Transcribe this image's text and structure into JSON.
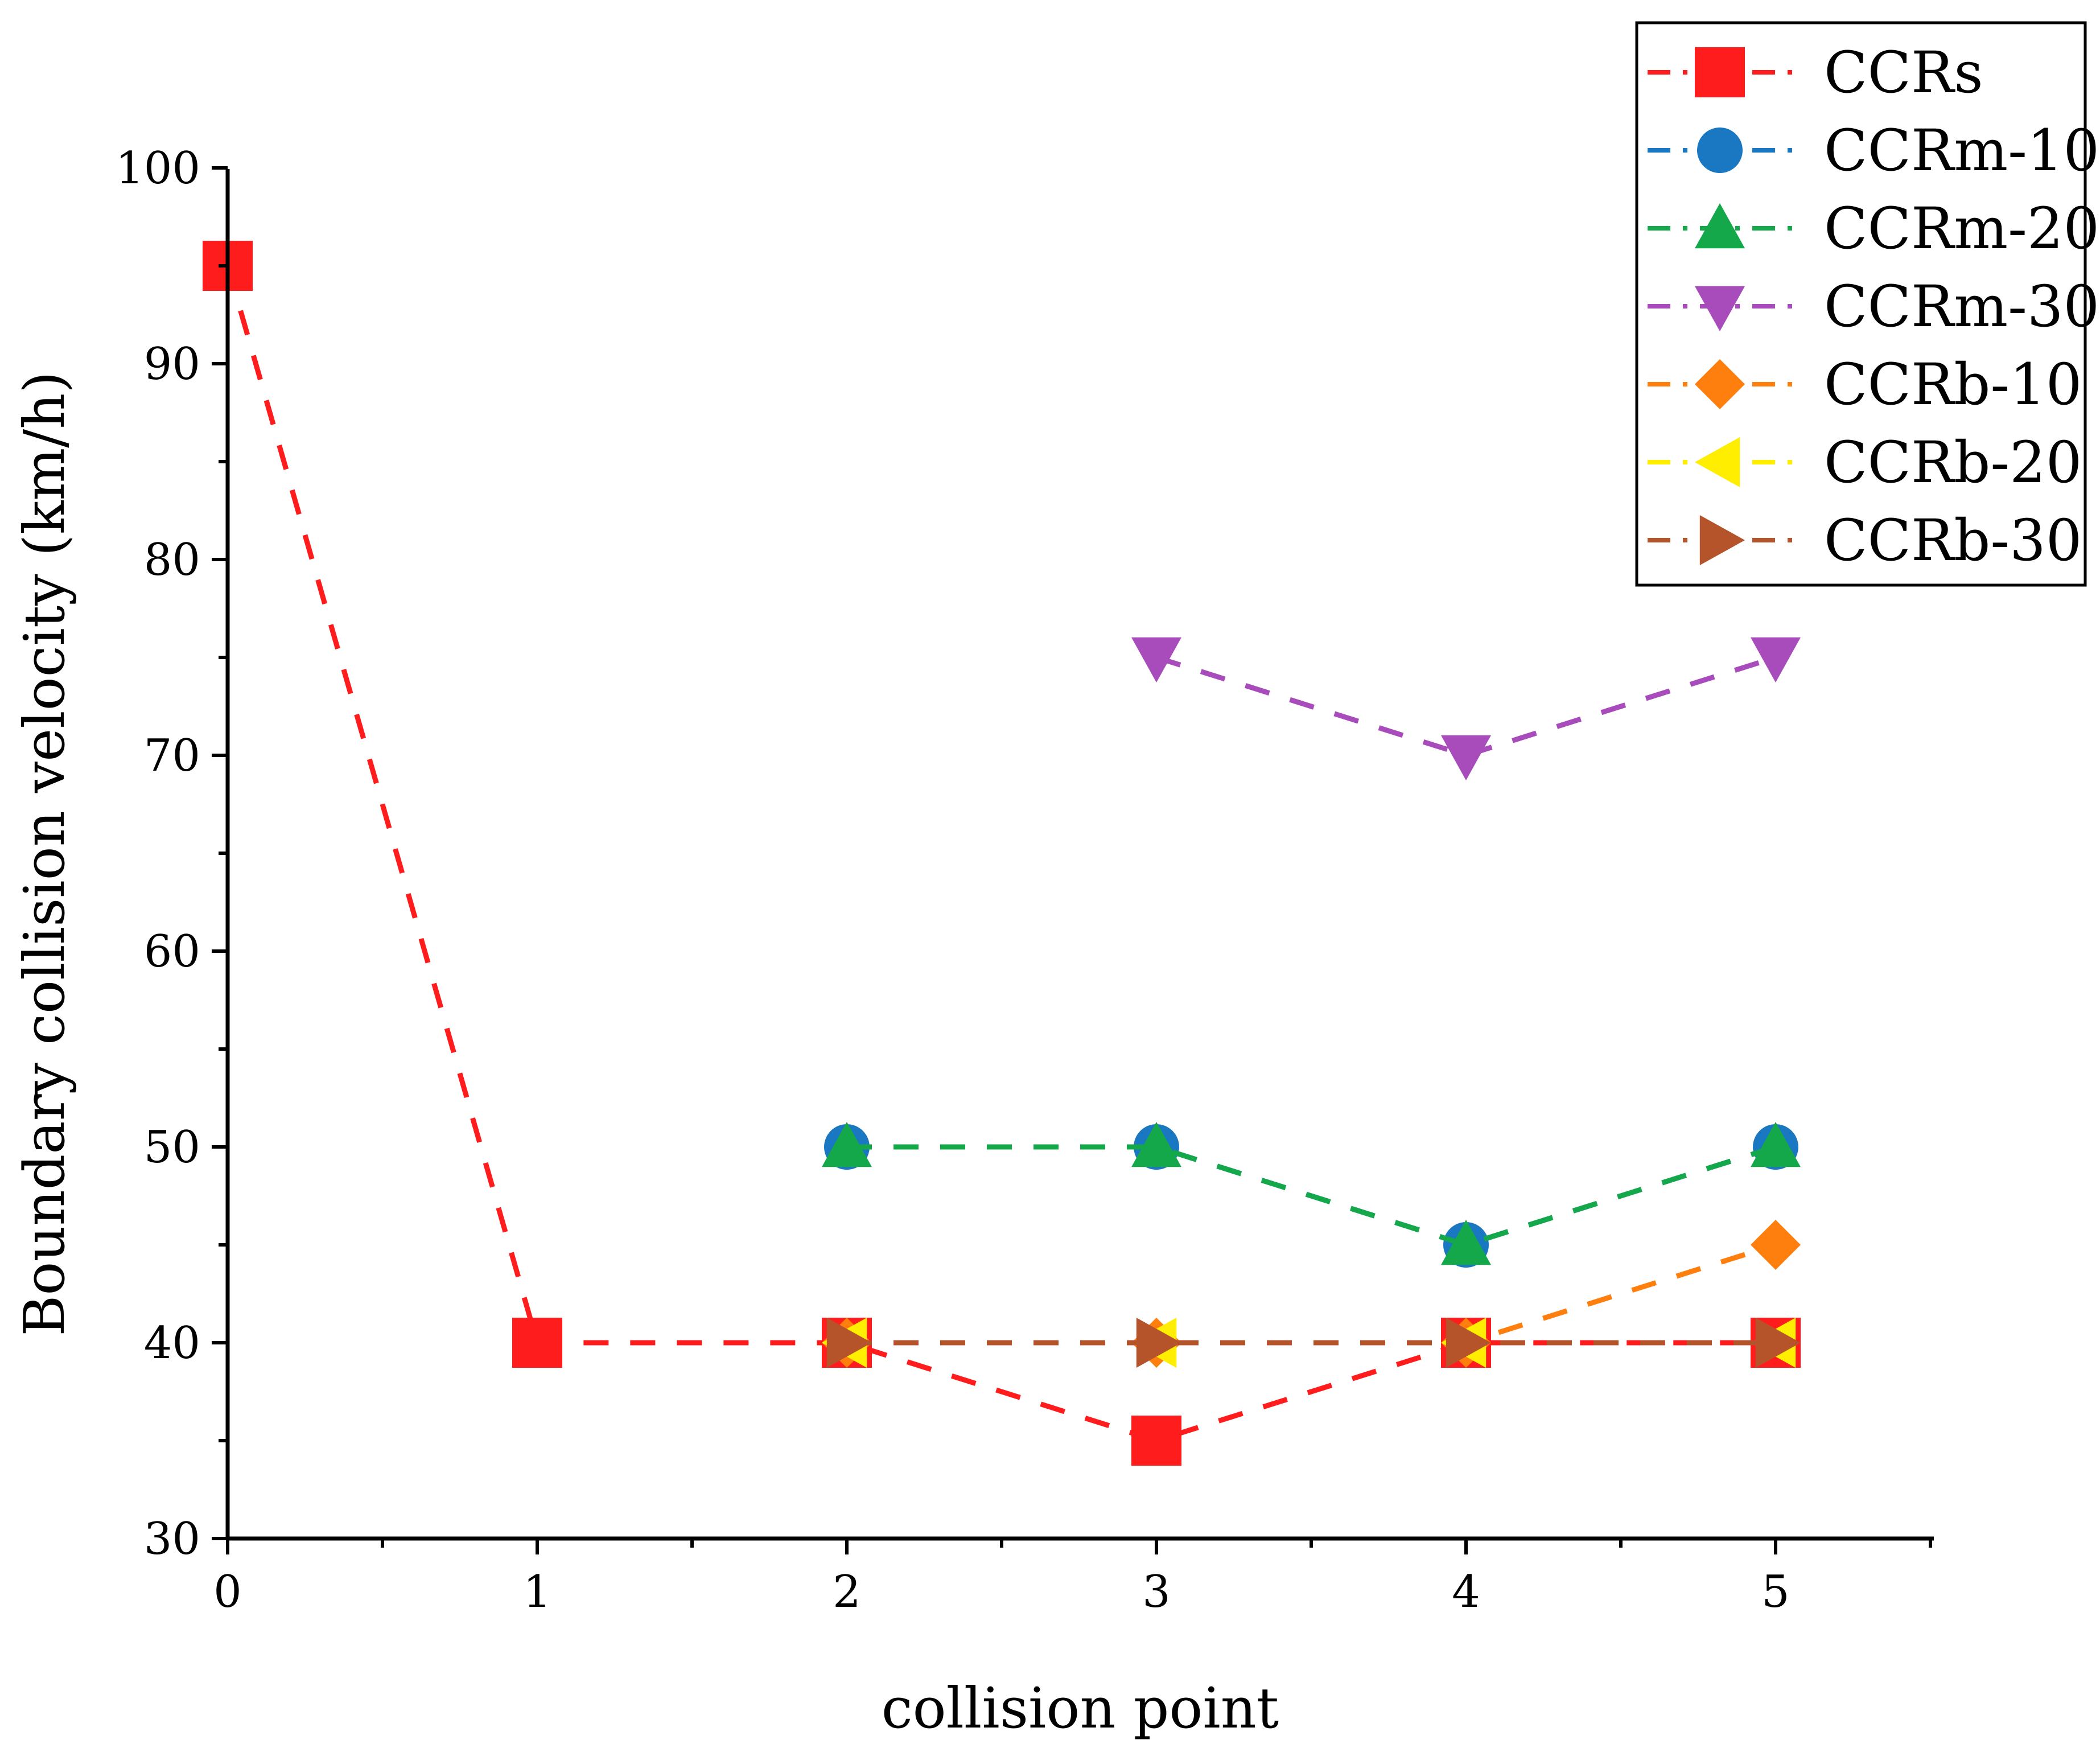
{
  "chart_data": {
    "type": "line",
    "title": "",
    "xlabel": "collision point",
    "ylabel": "Boundary collision velocity (km/h)",
    "xlim": [
      0,
      5.5
    ],
    "ylim": [
      30,
      100
    ],
    "xticks": [
      0,
      1,
      2,
      3,
      4,
      5
    ],
    "yticks": [
      30,
      40,
      50,
      60,
      70,
      80,
      90,
      100
    ],
    "xtick_labels": [
      "0",
      "1",
      "2",
      "3",
      "4",
      "5"
    ],
    "ytick_labels": [
      "30",
      "40",
      "50",
      "60",
      "70",
      "80",
      "90",
      "100"
    ],
    "grid": false,
    "legend_position": "top-right",
    "series": [
      {
        "name": "CCRs",
        "color": "#ff1c1c",
        "marker": "square",
        "x": [
          0,
          1,
          2,
          3,
          4,
          5
        ],
        "values": [
          95,
          40,
          40,
          35,
          40,
          40
        ]
      },
      {
        "name": "CCRm-10",
        "color": "#1a78c2",
        "marker": "circle",
        "x": [
          2,
          3,
          4,
          5
        ],
        "values": [
          50,
          50,
          45,
          50
        ]
      },
      {
        "name": "CCRm-20",
        "color": "#14a84a",
        "marker": "triangle-up",
        "x": [
          2,
          3,
          4,
          5
        ],
        "values": [
          50,
          50,
          45,
          50
        ]
      },
      {
        "name": "CCRm-30",
        "color": "#a84bbb",
        "marker": "triangle-down",
        "x": [
          3,
          4,
          5
        ],
        "values": [
          75,
          70,
          75
        ]
      },
      {
        "name": "CCRb-10",
        "color": "#ff7f0e",
        "marker": "diamond",
        "x": [
          2,
          3,
          4,
          5
        ],
        "values": [
          40,
          40,
          40,
          45
        ]
      },
      {
        "name": "CCRb-20",
        "color": "#ffee00",
        "marker": "triangle-left",
        "x": [
          2,
          3,
          4,
          5
        ],
        "values": [
          40,
          40,
          40,
          40
        ]
      },
      {
        "name": "CCRb-30",
        "color": "#b5542b",
        "marker": "triangle-right",
        "x": [
          2,
          3,
          4,
          5
        ],
        "values": [
          40,
          40,
          40,
          40
        ]
      }
    ]
  }
}
